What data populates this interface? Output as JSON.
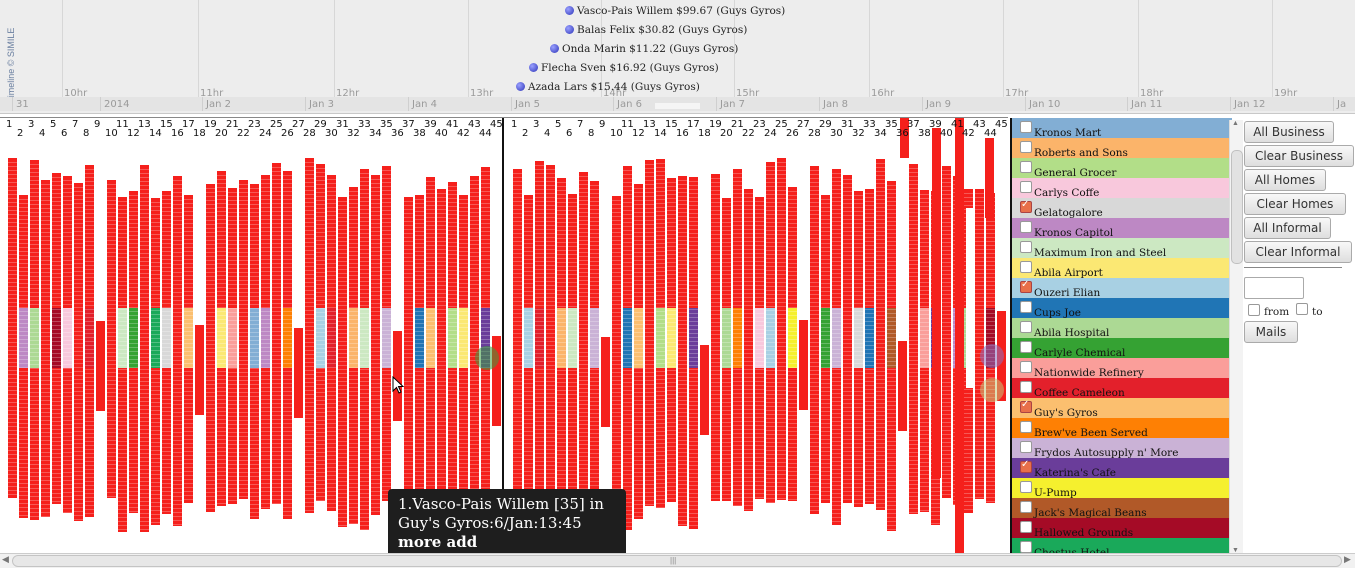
{
  "timeline": {
    "credit": "Timeline © SIMILE",
    "hours": [
      "10hr",
      "11hr",
      "12hr",
      "13hr",
      "14hr",
      "15hr",
      "16hr",
      "17hr",
      "18hr",
      "19hr"
    ],
    "days": [
      "31",
      "2014",
      "Jan 2",
      "Jan 3",
      "Jan 4",
      "Jan 5",
      "Jan 6",
      "Jan 7",
      "Jan 8",
      "Jan 9",
      "Jan 10",
      "Jan 11",
      "Jan 12",
      "Ja"
    ],
    "events": [
      "Vasco-Pais Willem $99.67 (Guys Gyros)",
      "Balas Felix $30.82 (Guys Gyros)",
      "Onda Marin $11.22 (Guys Gyros)",
      "Flecha Sven $16.92 (Guys Gyros)",
      "Azada Lars $15.44 (Guys Gyros)"
    ]
  },
  "grid": {
    "column_numbers": [
      "1",
      "2",
      "3",
      "4",
      "5",
      "6",
      "7",
      "8",
      "9",
      "10",
      "11",
      "12",
      "13",
      "14",
      "15",
      "16",
      "17",
      "18",
      "19",
      "20",
      "21",
      "22",
      "23",
      "24",
      "25",
      "26",
      "27",
      "28",
      "29",
      "30",
      "31",
      "32",
      "33",
      "34",
      "35",
      "36",
      "37",
      "38",
      "39",
      "40",
      "41",
      "42",
      "43",
      "44",
      "45"
    ],
    "tooltip": {
      "line1": "1.Vasco-Pais Willem [35] in",
      "line2": "Guy's Gyros:6/Jan:13:45",
      "link": "more add"
    }
  },
  "legend": {
    "items": [
      {
        "label": "Kronos Mart",
        "color": "#82aed4",
        "checked": false
      },
      {
        "label": "Roberts and Sons",
        "color": "#fbb46a",
        "checked": false
      },
      {
        "label": "General Grocer",
        "color": "#b2de88",
        "checked": false
      },
      {
        "label": "Carlys Coffe",
        "color": "#f8c8dc",
        "checked": false
      },
      {
        "label": "Gelatogalore",
        "color": "#d8d8d8",
        "checked": true
      },
      {
        "label": "Kronos Capitol",
        "color": "#bd88c4",
        "checked": false
      },
      {
        "label": "Maximum Iron and Steel",
        "color": "#cce8c2",
        "checked": false
      },
      {
        "label": "Abila Airport",
        "color": "#fbe873",
        "checked": false
      },
      {
        "label": "Ouzeri Elian",
        "color": "#a8d0e3",
        "checked": true
      },
      {
        "label": "Cups Joe",
        "color": "#2075b5",
        "checked": false
      },
      {
        "label": "Abila Hospital",
        "color": "#acd994",
        "checked": false
      },
      {
        "label": "Carlyle Chemical",
        "color": "#35a233",
        "checked": false
      },
      {
        "label": "Nationwide Refinery",
        "color": "#fa9e9a",
        "checked": false
      },
      {
        "label": "Coffee Cameleon",
        "color": "#e3202b",
        "checked": false
      },
      {
        "label": "Guy's Gyros",
        "color": "#fbbf6f",
        "checked": true
      },
      {
        "label": "Brew've Been Served",
        "color": "#fe8004",
        "checked": false
      },
      {
        "label": "Frydos Autosupply n' More",
        "color": "#cab2d6",
        "checked": false
      },
      {
        "label": "Katerina's Cafe",
        "color": "#6a3d9a",
        "checked": true
      },
      {
        "label": "U-Pump",
        "color": "#f5f02e",
        "checked": false
      },
      {
        "label": "Jack's Magical Beans",
        "color": "#b15928",
        "checked": false
      },
      {
        "label": "Hallowed Grounds",
        "color": "#a50b26",
        "checked": false
      },
      {
        "label": "Chostus Hotel",
        "color": "#1aa95a",
        "checked": false
      }
    ]
  },
  "buttons": {
    "all_business": "All Business",
    "clear_business": "Clear Business",
    "all_homes": "All Homes",
    "clear_homes": "Clear Homes",
    "all_informal": "All Informal",
    "clear_informal": "Clear Informal",
    "from": "from",
    "to": "to",
    "mails": "Mails",
    "date_value": ""
  },
  "colors": {
    "red": "#f5201c",
    "white": "#ffffff"
  }
}
